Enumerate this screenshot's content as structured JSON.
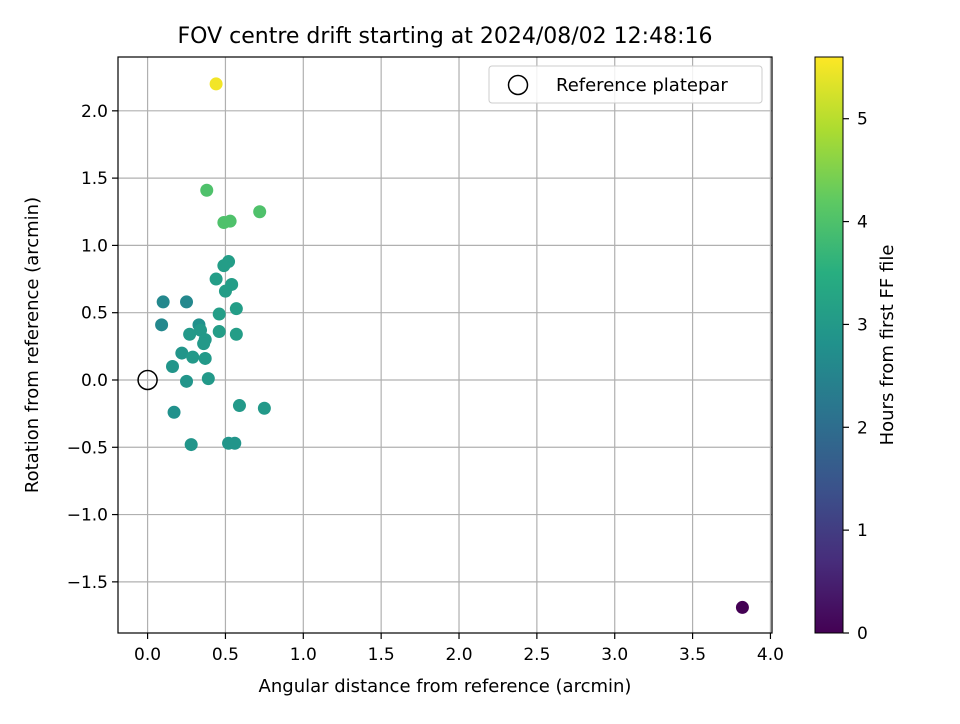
{
  "chart_data": {
    "type": "scatter",
    "title": "FOV centre drift starting at 2024/08/02 12:48:16",
    "xlabel": "Angular distance from reference (arcmin)",
    "ylabel": "Rotation from reference (arcmin)",
    "xlim": [
      -0.19,
      4.01
    ],
    "ylim": [
      -1.88,
      2.4
    ],
    "x_ticks": [
      0.0,
      0.5,
      1.0,
      1.5,
      2.0,
      2.5,
      3.0,
      3.5,
      4.0
    ],
    "x_tick_labels": [
      "0.0",
      "0.5",
      "1.0",
      "1.5",
      "2.0",
      "2.5",
      "3.0",
      "3.5",
      "4.0"
    ],
    "y_ticks": [
      -1.5,
      -1.0,
      -0.5,
      0.0,
      0.5,
      1.0,
      1.5,
      2.0
    ],
    "y_tick_labels": [
      "−1.5",
      "−1.0",
      "−0.5",
      "0.0",
      "0.5",
      "1.0",
      "1.5",
      "2.0"
    ],
    "grid": true,
    "colormap": "viridis",
    "colorbar": {
      "label": "Hours from first FF file",
      "range": [
        0,
        5.6
      ],
      "ticks": [
        0,
        1,
        2,
        3,
        4,
        5
      ],
      "tick_labels": [
        "0",
        "1",
        "2",
        "3",
        "4",
        "5"
      ]
    },
    "legend": {
      "position": "top-right",
      "entries": [
        {
          "label": "Reference platepar",
          "marker": "open-circle",
          "color": "#000000"
        }
      ]
    },
    "reference_point": {
      "x": 0.0,
      "y": 0.0
    },
    "points": [
      {
        "x": 3.82,
        "y": -1.69,
        "c": 0.0
      },
      {
        "x": 0.44,
        "y": 2.2,
        "c": 5.5
      },
      {
        "x": 0.38,
        "y": 1.41,
        "c": 4.0
      },
      {
        "x": 0.72,
        "y": 1.25,
        "c": 4.0
      },
      {
        "x": 0.49,
        "y": 1.17,
        "c": 4.0
      },
      {
        "x": 0.53,
        "y": 1.18,
        "c": 4.0
      },
      {
        "x": 0.52,
        "y": 0.88,
        "c": 3.1
      },
      {
        "x": 0.49,
        "y": 0.85,
        "c": 3.1
      },
      {
        "x": 0.44,
        "y": 0.75,
        "c": 3.1
      },
      {
        "x": 0.54,
        "y": 0.71,
        "c": 3.1
      },
      {
        "x": 0.5,
        "y": 0.66,
        "c": 3.1
      },
      {
        "x": 0.1,
        "y": 0.58,
        "c": 2.6
      },
      {
        "x": 0.25,
        "y": 0.58,
        "c": 2.6
      },
      {
        "x": 0.57,
        "y": 0.53,
        "c": 3.1
      },
      {
        "x": 0.46,
        "y": 0.49,
        "c": 3.1
      },
      {
        "x": 0.09,
        "y": 0.41,
        "c": 2.6
      },
      {
        "x": 0.33,
        "y": 0.41,
        "c": 2.8
      },
      {
        "x": 0.34,
        "y": 0.37,
        "c": 3.0
      },
      {
        "x": 0.46,
        "y": 0.36,
        "c": 3.1
      },
      {
        "x": 0.27,
        "y": 0.34,
        "c": 3.0
      },
      {
        "x": 0.57,
        "y": 0.34,
        "c": 3.1
      },
      {
        "x": 0.37,
        "y": 0.3,
        "c": 3.0
      },
      {
        "x": 0.36,
        "y": 0.27,
        "c": 3.0
      },
      {
        "x": 0.22,
        "y": 0.2,
        "c": 2.9
      },
      {
        "x": 0.29,
        "y": 0.17,
        "c": 3.0
      },
      {
        "x": 0.37,
        "y": 0.16,
        "c": 3.0
      },
      {
        "x": 0.16,
        "y": 0.1,
        "c": 2.9
      },
      {
        "x": 0.25,
        "y": -0.01,
        "c": 2.9
      },
      {
        "x": 0.39,
        "y": 0.01,
        "c": 3.0
      },
      {
        "x": 0.59,
        "y": -0.19,
        "c": 3.0
      },
      {
        "x": 0.75,
        "y": -0.21,
        "c": 3.0
      },
      {
        "x": 0.17,
        "y": -0.24,
        "c": 2.8
      },
      {
        "x": 0.28,
        "y": -0.48,
        "c": 2.9
      },
      {
        "x": 0.52,
        "y": -0.47,
        "c": 2.9
      },
      {
        "x": 0.56,
        "y": -0.47,
        "c": 2.9
      }
    ]
  }
}
